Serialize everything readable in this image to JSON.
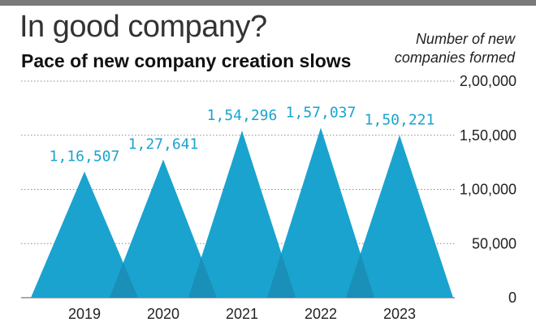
{
  "header": {
    "title": "In good company?",
    "subtitle": "Pace of new company creation slows"
  },
  "chart_data": {
    "type": "area",
    "title": "In good company?",
    "subtitle": "Pace of new company creation slows",
    "ylabel_lines": [
      "Number of new",
      "companies formed"
    ],
    "xlabel": "",
    "categories": [
      "2019",
      "2020",
      "2021",
      "2022",
      "2023"
    ],
    "values": [
      116507,
      127641,
      154296,
      157037,
      150221
    ],
    "data_labels": [
      "1,16,507",
      "1,27,641",
      "1,54,296",
      "1,57,037",
      "1,50,221"
    ],
    "ylim": [
      0,
      200000
    ],
    "yticks": [
      0,
      50000,
      100000,
      150000,
      200000
    ],
    "ytick_labels": [
      "0",
      "50,000",
      "1,00,000",
      "1,50,000",
      "2,00,000"
    ],
    "grid": true,
    "color": "#1aa3cf",
    "overlap_color": "#1a8fb8"
  }
}
